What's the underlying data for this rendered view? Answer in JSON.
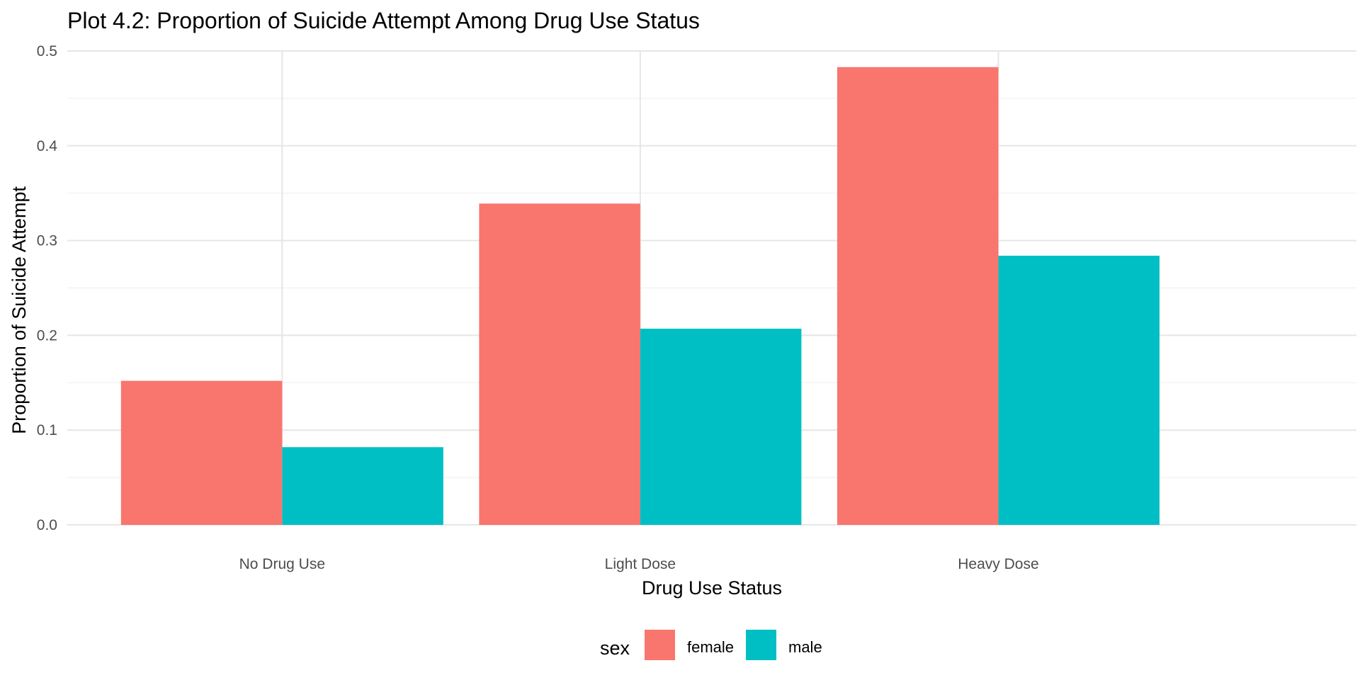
{
  "chart_data": {
    "type": "bar",
    "title": "Plot 4.2: Proportion of Suicide Attempt Among Drug Use Status",
    "xlabel": "Drug Use Status",
    "ylabel": "Proportion of Suicide Attempt",
    "categories": [
      "No Drug Use",
      "Light Dose",
      "Heavy Dose"
    ],
    "series": [
      {
        "name": "female",
        "color": "#F8766D",
        "values": [
          0.152,
          0.339,
          0.483
        ]
      },
      {
        "name": "male",
        "color": "#00BFC4",
        "values": [
          0.082,
          0.207,
          0.284
        ]
      }
    ],
    "ylim": [
      0,
      0.5
    ],
    "yticks": [
      "0.0",
      "0.1",
      "0.2",
      "0.3",
      "0.4",
      "0.5"
    ],
    "grid": true,
    "legend": {
      "title": "sex",
      "position": "bottom"
    }
  }
}
